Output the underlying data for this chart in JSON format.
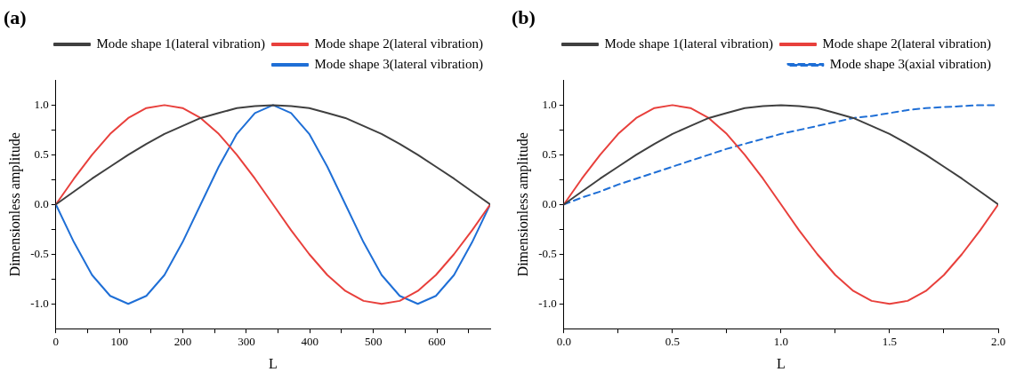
{
  "chart_data": [
    {
      "type": "line",
      "title": "(a)",
      "xlabel": "L",
      "ylabel": "Dimensionless amplitude",
      "legend": "top right",
      "grid": false,
      "x": [
        0,
        28.5,
        57,
        85.5,
        114,
        142.5,
        171,
        199.5,
        228,
        256.5,
        285,
        313.5,
        342,
        370.5,
        399,
        427.5,
        456,
        484.5,
        513,
        541.5,
        570,
        598.5,
        627,
        655.5,
        684
      ],
      "xlim": [
        0,
        684
      ],
      "ylim": [
        -1.25,
        1.25
      ],
      "xticks": [
        0,
        {
          "value": 50,
          "label": null
        },
        100,
        {
          "value": 150,
          "label": null
        },
        200,
        {
          "value": 250,
          "label": null
        },
        300,
        {
          "value": 350,
          "label": null
        },
        400,
        {
          "value": 450,
          "label": null
        },
        500,
        {
          "value": 550,
          "label": null
        },
        600,
        {
          "value": 650,
          "label": null
        }
      ],
      "yticks": [
        {
          "value": -1,
          "label": "-1.0"
        },
        {
          "value": -0.75,
          "label": null
        },
        {
          "value": -0.5,
          "label": "-0.5"
        },
        {
          "value": -0.25,
          "label": null
        },
        {
          "value": 0,
          "label": "0.0"
        },
        {
          "value": 0.25,
          "label": null
        },
        {
          "value": 0.5,
          "label": "0.5"
        },
        {
          "value": 0.75,
          "label": null
        },
        {
          "value": 1,
          "label": "1.0"
        }
      ],
      "series": [
        {
          "name": "Mode shape 1(lateral vibration)",
          "color": "#404040",
          "values": [
            0,
            0.13,
            0.26,
            0.38,
            0.5,
            0.61,
            0.71,
            0.79,
            0.87,
            0.92,
            0.97,
            0.99,
            1,
            0.99,
            0.97,
            0.92,
            0.87,
            0.79,
            0.71,
            0.61,
            0.5,
            0.38,
            0.26,
            0.13,
            0
          ]
        },
        {
          "name": "Mode shape 2(lateral vibration)",
          "color": "#e8403c",
          "values": [
            0,
            0.26,
            0.5,
            0.71,
            0.87,
            0.97,
            1,
            0.97,
            0.87,
            0.71,
            0.5,
            0.26,
            0,
            -0.26,
            -0.5,
            -0.71,
            -0.87,
            -0.97,
            -1,
            -0.97,
            -0.87,
            -0.71,
            -0.5,
            -0.26,
            0
          ]
        },
        {
          "name": "Mode shape 3(lateral vibration)",
          "color": "#1f6fd6",
          "values": [
            0,
            -0.38,
            -0.71,
            -0.92,
            -1,
            -0.92,
            -0.71,
            -0.38,
            0,
            0.38,
            0.71,
            0.92,
            1,
            0.92,
            0.71,
            0.38,
            0,
            -0.38,
            -0.71,
            -0.92,
            -1,
            -0.92,
            -0.71,
            -0.38,
            0
          ]
        }
      ]
    },
    {
      "type": "line",
      "title": "(b)",
      "xlabel": "L",
      "ylabel": "Dimensionless amplitude",
      "legend": "top right",
      "grid": false,
      "x": [
        0,
        0.083,
        0.167,
        0.25,
        0.333,
        0.417,
        0.5,
        0.583,
        0.667,
        0.75,
        0.833,
        0.917,
        1,
        1.083,
        1.167,
        1.25,
        1.333,
        1.417,
        1.5,
        1.583,
        1.667,
        1.75,
        1.833,
        1.917,
        2
      ],
      "xlim": [
        0,
        2
      ],
      "ylim": [
        -1.25,
        1.25
      ],
      "xticks": [
        {
          "value": 0,
          "label": "0.0"
        },
        {
          "value": 0.25,
          "label": null
        },
        {
          "value": 0.5,
          "label": "0.5"
        },
        {
          "value": 0.75,
          "label": null
        },
        {
          "value": 1,
          "label": "1.0"
        },
        {
          "value": 1.25,
          "label": null
        },
        {
          "value": 1.5,
          "label": "1.5"
        },
        {
          "value": 1.75,
          "label": null
        },
        {
          "value": 2,
          "label": "2.0"
        }
      ],
      "yticks": [
        {
          "value": -1,
          "label": "-1.0"
        },
        {
          "value": -0.75,
          "label": null
        },
        {
          "value": -0.5,
          "label": "-0.5"
        },
        {
          "value": -0.25,
          "label": null
        },
        {
          "value": 0,
          "label": "0.0"
        },
        {
          "value": 0.25,
          "label": null
        },
        {
          "value": 0.5,
          "label": "0.5"
        },
        {
          "value": 0.75,
          "label": null
        },
        {
          "value": 1,
          "label": "1.0"
        }
      ],
      "series": [
        {
          "name": "Mode shape 1(lateral vibration)",
          "color": "#404040",
          "values": [
            0,
            0.13,
            0.26,
            0.38,
            0.5,
            0.61,
            0.71,
            0.79,
            0.87,
            0.92,
            0.97,
            0.99,
            1,
            0.99,
            0.97,
            0.92,
            0.87,
            0.79,
            0.71,
            0.61,
            0.5,
            0.38,
            0.26,
            0.13,
            0
          ]
        },
        {
          "name": "Mode shape 2(lateral vibration)",
          "color": "#e8403c",
          "values": [
            0,
            0.26,
            0.5,
            0.71,
            0.87,
            0.97,
            1,
            0.97,
            0.87,
            0.71,
            0.5,
            0.26,
            0,
            -0.26,
            -0.5,
            -0.71,
            -0.87,
            -0.97,
            -1,
            -0.97,
            -0.87,
            -0.71,
            -0.5,
            -0.26,
            0
          ]
        },
        {
          "name": "Mode shape 3(axial vibration)",
          "color": "#1f6fd6",
          "line_style": "dashed",
          "values": [
            0,
            0.07,
            0.13,
            0.2,
            0.26,
            0.32,
            0.38,
            0.44,
            0.5,
            0.56,
            0.61,
            0.66,
            0.71,
            0.75,
            0.79,
            0.83,
            0.87,
            0.89,
            0.92,
            0.95,
            0.97,
            0.98,
            0.99,
            1,
            1
          ]
        }
      ]
    }
  ]
}
